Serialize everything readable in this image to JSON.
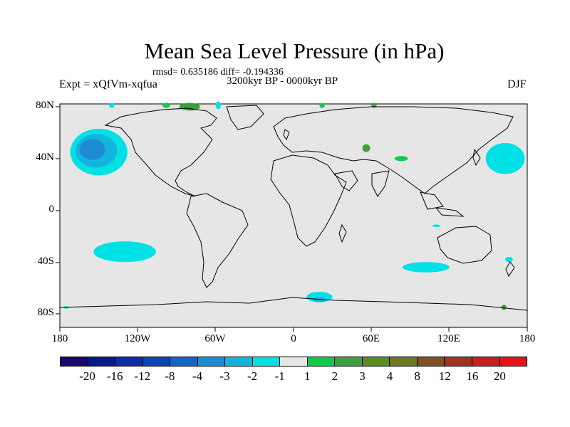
{
  "title": "Mean Sea Level Pressure (in hPa)",
  "stats": "rmsd= 0.635186 diff= -0.194336",
  "period": "3200kyr BP - 0000kyr BP",
  "experiment": "Expt = xQfVm-xqfua",
  "season": "DJF",
  "axes": {
    "lat_ticks": [
      "80N",
      "40N",
      "0",
      "40S",
      "80S"
    ],
    "lon_ticks": [
      "180",
      "120W",
      "60W",
      "0",
      "60E",
      "120E",
      "180"
    ]
  },
  "colorbar": {
    "labels": [
      "-20",
      "-16",
      "-12",
      "-8",
      "-4",
      "-3",
      "-2",
      "-1",
      "1",
      "2",
      "3",
      "4",
      "8",
      "12",
      "16",
      "20"
    ],
    "colors": [
      "#1a0a6e",
      "#0a1a8c",
      "#0a2fa8",
      "#0a46b4",
      "#1464c8",
      "#1e8cd2",
      "#14b4dc",
      "#00e1e6",
      "#e6e6e6",
      "#14c84b",
      "#3ca03c",
      "#5a8c1e",
      "#6e781e",
      "#82501e",
      "#a0321e",
      "#c81e1e",
      "#e61414"
    ]
  },
  "map_colors": {
    "background": "#e6e6e6",
    "neg_mid": "#1e8cd2",
    "neg_strong": "#1464c8",
    "neg_light": "#14b4dc",
    "cyan": "#00e1e6",
    "pos_green": "#14c84b",
    "pos_dark_green": "#3ca03c"
  },
  "anomalies": [
    {
      "name": "north-pacific-low",
      "lon": -150,
      "lat": 45,
      "rlon": 22,
      "rlat": 18,
      "level": "cyan"
    },
    {
      "name": "north-pacific-low-inner",
      "lon": -152,
      "lat": 46,
      "rlon": 16,
      "rlat": 13,
      "level": "neg_light"
    },
    {
      "name": "north-pacific-low-core",
      "lon": -155,
      "lat": 47,
      "rlon": 10,
      "rlat": 8,
      "level": "neg_mid"
    },
    {
      "name": "west-pacific-cyan",
      "lon": 163,
      "lat": 40,
      "rlon": 15,
      "rlat": 12,
      "level": "cyan"
    },
    {
      "name": "south-pacific-cyan",
      "lon": -130,
      "lat": -32,
      "rlon": 24,
      "rlat": 8,
      "level": "cyan"
    },
    {
      "name": "indian-ocean-cyan",
      "lon": 102,
      "lat": -44,
      "rlon": 18,
      "rlat": 4,
      "level": "cyan"
    },
    {
      "name": "southern-ocean-cyan",
      "lon": 20,
      "lat": -67,
      "rlon": 10,
      "rlat": 4,
      "level": "cyan"
    },
    {
      "name": "southern-ocean-core",
      "lon": 20,
      "lat": -69,
      "rlon": 5,
      "rlat": 2,
      "level": "neg_light"
    },
    {
      "name": "central-asia-green",
      "lon": 83,
      "lat": 40,
      "rlon": 5,
      "rlat": 2,
      "level": "pos_green"
    },
    {
      "name": "caspian-green",
      "lon": 56,
      "lat": 48,
      "rlon": 3,
      "rlat": 3,
      "level": "pos_dark_green"
    },
    {
      "name": "greenland-green",
      "lon": -80,
      "lat": 80,
      "rlon": 8,
      "rlat": 3,
      "level": "pos_dark_green"
    },
    {
      "name": "svalbard-green",
      "lon": 22,
      "lat": 86,
      "rlon": 2,
      "rlat": 2,
      "level": "pos_green"
    },
    {
      "name": "arctic-green",
      "lon": 62,
      "lat": 88,
      "rlon": 2,
      "rlat": 2,
      "level": "pos_dark_green"
    },
    {
      "name": "east-siberia-green",
      "lon": -98,
      "lat": 86,
      "rlon": 3,
      "rlat": 2,
      "level": "pos_green"
    },
    {
      "name": "australia-cyan",
      "lon": 166,
      "lat": -38,
      "rlon": 3,
      "rlat": 2,
      "level": "cyan"
    },
    {
      "name": "nz-cyan",
      "lon": 110,
      "lat": -12,
      "rlon": 3,
      "rlat": 1,
      "level": "cyan"
    },
    {
      "name": "arctic-cyan-1",
      "lon": -140,
      "lat": 88,
      "rlon": 2,
      "rlat": 2,
      "level": "cyan"
    },
    {
      "name": "arctic-cyan-2",
      "lon": -58,
      "lat": 84,
      "rlon": 2,
      "rlat": 3,
      "level": "cyan"
    },
    {
      "name": "ross-sea-green",
      "lon": 162,
      "lat": -75,
      "rlon": 2,
      "rlat": 2,
      "level": "pos_dark_green"
    },
    {
      "name": "south-atlantic-cyan",
      "lon": -175,
      "lat": -75,
      "rlon": 2,
      "rlat": 1,
      "level": "cyan"
    }
  ]
}
